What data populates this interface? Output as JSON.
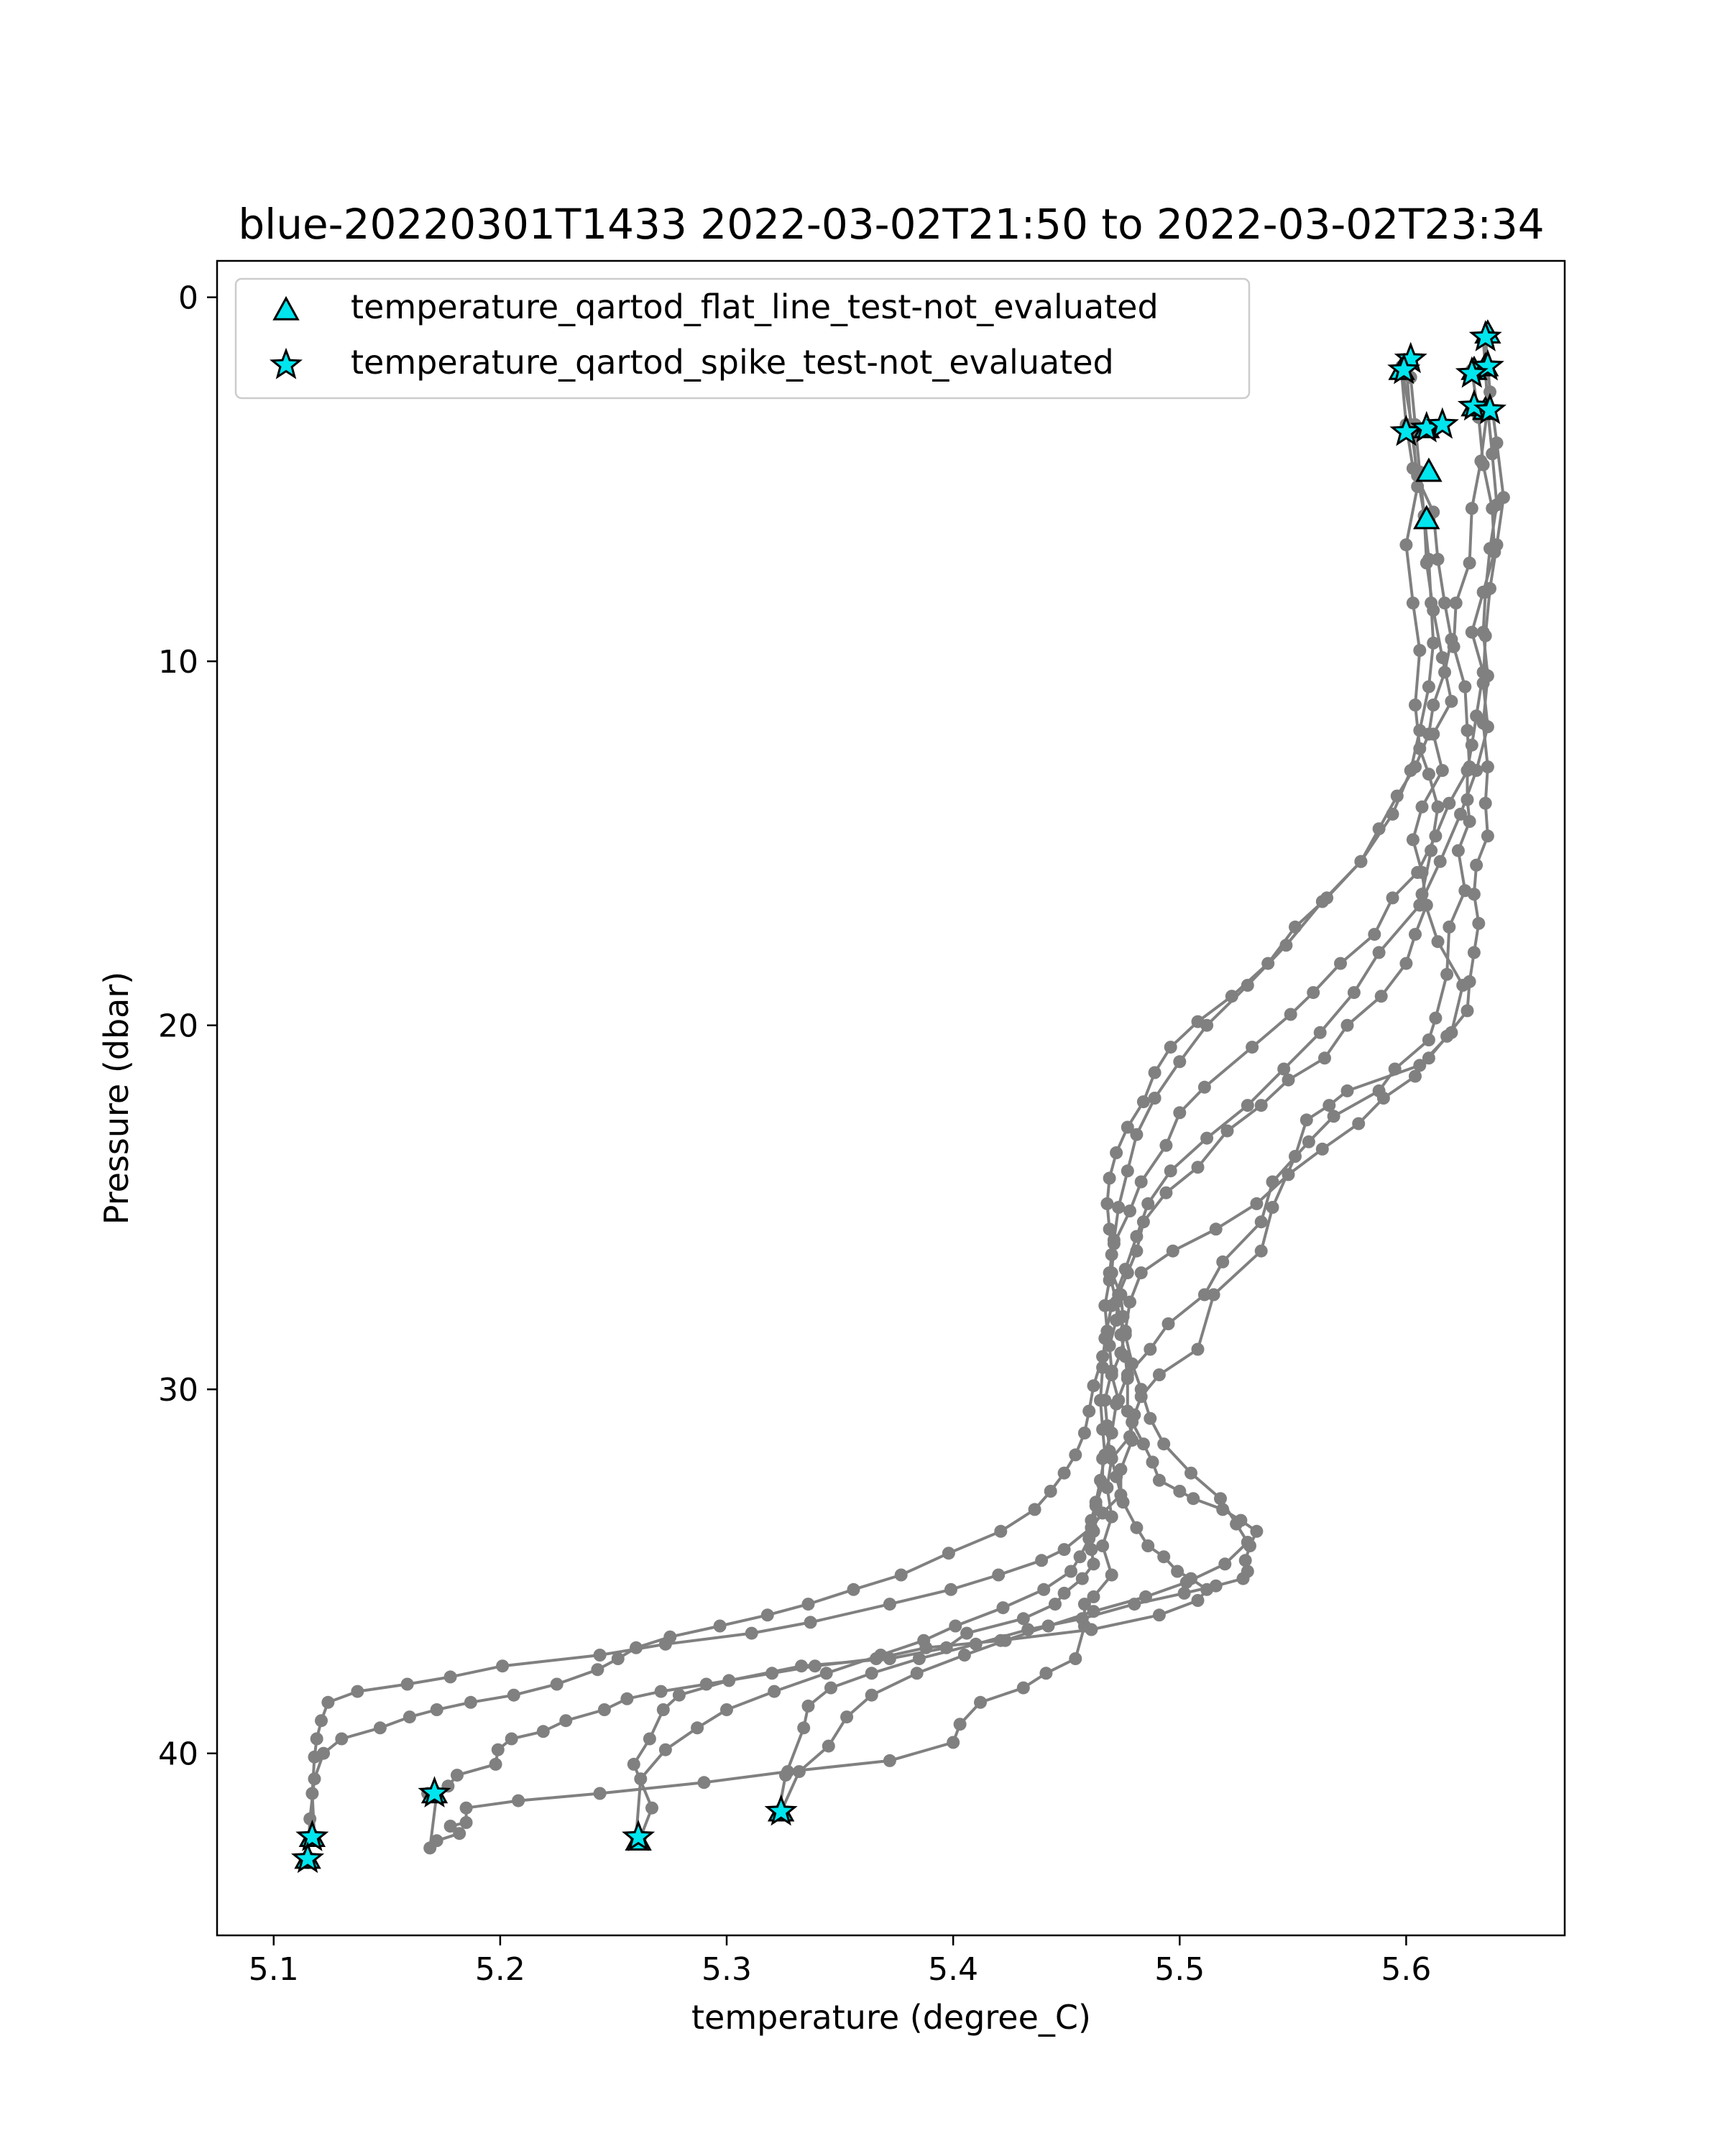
{
  "chart_data": {
    "type": "line",
    "title": "blue-20220301T1433 2022-03-02T21:50 to 2022-03-02T23:34",
    "xlabel": "temperature (degree_C)",
    "ylabel": "Pressure (dbar)",
    "xlim": [
      5.075,
      5.67
    ],
    "ylim": [
      45,
      -1
    ],
    "y_inverted": true,
    "xticks": [
      5.1,
      5.2,
      5.3,
      5.4,
      5.5,
      5.6
    ],
    "xtick_labels": [
      "5.1",
      "5.2",
      "5.3",
      "5.4",
      "5.5",
      "5.6"
    ],
    "yticks": [
      0,
      10,
      20,
      30,
      40
    ],
    "ytick_labels": [
      "0",
      "10",
      "20",
      "30",
      "40"
    ],
    "line_color": "#808080",
    "marker_color": "#00e5ee",
    "legend_position": "upper-left",
    "legend": [
      {
        "label": "temperature_qartod_flat_line_test-not_evaluated",
        "marker": "triangle"
      },
      {
        "label": "temperature_qartod_spike_test-not_evaluated",
        "marker": "star"
      }
    ],
    "series": [
      {
        "x": [
          5.598,
          5.603,
          5.605,
          5.6,
          5.603,
          5.606,
          5.604,
          5.606,
          5.61,
          5.614,
          5.611,
          5.607,
          5.614,
          5.625,
          5.62,
          5.606,
          5.574,
          5.566,
          5.556,
          5.551,
          5.541,
          5.536,
          5.515,
          5.508,
          5.491,
          5.483,
          5.48,
          5.478,
          5.47,
          5.468,
          5.47,
          5.466,
          5.47,
          5.462,
          5.458,
          5.458,
          5.454,
          5.441,
          5.431,
          5.412,
          5.403,
          5.4,
          5.372,
          5.327,
          5.29,
          5.244,
          5.208,
          5.185,
          5.185,
          5.178,
          5.182,
          5.172,
          5.169,
          5.172
        ],
        "y": [
          1.9,
          3.7,
          5.2,
          6.8,
          8.4,
          9.7,
          11.2,
          12.4,
          13.1,
          14.0,
          15.2,
          16.4,
          17.7,
          18.9,
          20.2,
          21.1,
          21.8,
          22.2,
          22.6,
          23.6,
          25.0,
          26.2,
          27.4,
          28.9,
          29.6,
          30.2,
          30.7,
          31.3,
          31.9,
          32.7,
          33.5,
          34.3,
          35.1,
          35.7,
          35.9,
          36.5,
          37.4,
          37.8,
          38.2,
          38.6,
          39.2,
          39.7,
          40.2,
          40.5,
          40.8,
          41.1,
          41.3,
          41.5,
          41.9,
          42.0,
          42.2,
          42.4,
          42.6,
          41.1
        ]
      },
      {
        "x": [
          5.629,
          5.632,
          5.634,
          5.638,
          5.639,
          5.634,
          5.629,
          5.634,
          5.631,
          5.629,
          5.627,
          5.627,
          5.628,
          5.623,
          5.626,
          5.619,
          5.618,
          5.613,
          5.61,
          5.595,
          5.588,
          5.568,
          5.557,
          5.541,
          5.536,
          5.519,
          5.511,
          5.495,
          5.487,
          5.477,
          5.472,
          5.47,
          5.466,
          5.466,
          5.463,
          5.462,
          5.461,
          5.462,
          5.457,
          5.449,
          5.445,
          5.431,
          5.406,
          5.397,
          5.372,
          5.333,
          5.301,
          5.279,
          5.272,
          5.266,
          5.259,
          5.267,
          5.262
        ],
        "y": [
          2.0,
          3.3,
          4.6,
          5.8,
          7.0,
          8.1,
          9.2,
          10.3,
          11.5,
          12.3,
          13.0,
          13.8,
          14.4,
          15.2,
          16.3,
          17.3,
          18.6,
          19.8,
          20.4,
          21.2,
          21.8,
          22.5,
          23.2,
          24.3,
          25.4,
          26.5,
          27.4,
          28.2,
          28.9,
          29.6,
          30.4,
          31.2,
          31.9,
          32.6,
          33.2,
          33.9,
          34.4,
          34.8,
          35.2,
          35.6,
          35.9,
          36.3,
          36.7,
          37.1,
          37.4,
          37.6,
          38.0,
          38.4,
          38.8,
          39.6,
          40.3,
          41.5,
          42.3
        ]
      },
      {
        "x": [
          5.634,
          5.636,
          5.633,
          5.629,
          5.628,
          5.622,
          5.621,
          5.626,
          5.627,
          5.628,
          5.619,
          5.613,
          5.605,
          5.594,
          5.586,
          5.571,
          5.559,
          5.549,
          5.532,
          5.511,
          5.5,
          5.494,
          5.483,
          5.478,
          5.471,
          5.47,
          5.474,
          5.475,
          5.474,
          5.476,
          5.477,
          5.477,
          5.479,
          5.474,
          5.474,
          5.466,
          5.461,
          5.449,
          5.439,
          5.42,
          5.399,
          5.372,
          5.337,
          5.311,
          5.273,
          5.244,
          5.201,
          5.178,
          5.159,
          5.137,
          5.124,
          5.121,
          5.119,
          5.118,
          5.117,
          5.118
        ],
        "y": [
          1.1,
          3.0,
          4.5,
          5.8,
          7.3,
          8.4,
          9.6,
          10.7,
          11.9,
          12.9,
          13.9,
          14.8,
          15.8,
          16.5,
          17.5,
          18.3,
          19.1,
          19.7,
          20.6,
          21.7,
          22.4,
          23.3,
          24.3,
          25.1,
          26.0,
          26.8,
          27.4,
          28.0,
          28.5,
          29.1,
          29.7,
          30.6,
          31.4,
          32.2,
          32.9,
          33.4,
          33.8,
          34.4,
          34.7,
          35.1,
          35.5,
          35.9,
          36.4,
          36.7,
          37.0,
          37.3,
          37.6,
          37.9,
          38.1,
          38.3,
          38.6,
          39.1,
          39.6,
          40.1,
          41.1,
          42.3
        ]
      },
      {
        "x": [
          5.6,
          5.602,
          5.605,
          5.608,
          5.609,
          5.612,
          5.616,
          5.62,
          5.612,
          5.616,
          5.607,
          5.603,
          5.607,
          5.609,
          5.604,
          5.6,
          5.589,
          5.574,
          5.564,
          5.548,
          5.536,
          5.521,
          5.508,
          5.494,
          5.484,
          5.481,
          5.477,
          5.473,
          5.472,
          5.469,
          5.47,
          5.467,
          5.468,
          5.469,
          5.472,
          5.475,
          5.481,
          5.486,
          5.493,
          5.499,
          5.505,
          5.512,
          5.508,
          5.491,
          5.461,
          5.421,
          5.388,
          5.366,
          5.339,
          5.32,
          5.291,
          5.271,
          5.256,
          5.246,
          5.229,
          5.219,
          5.205,
          5.199,
          5.198,
          5.181,
          5.177,
          5.17,
          5.168
        ],
        "y": [
          1.8,
          3.5,
          4.9,
          6.0,
          7.3,
          8.6,
          9.9,
          11.1,
          12.0,
          13.0,
          14.0,
          14.9,
          15.8,
          16.7,
          17.5,
          18.3,
          19.2,
          20.0,
          20.9,
          21.5,
          22.2,
          22.9,
          23.9,
          24.6,
          25.4,
          26.2,
          26.8,
          27.4,
          28.1,
          28.8,
          29.5,
          30.3,
          31.0,
          31.7,
          32.4,
          33.1,
          33.8,
          34.3,
          34.6,
          35.0,
          35.2,
          35.5,
          35.8,
          36.2,
          36.6,
          36.9,
          37.1,
          37.4,
          37.6,
          37.8,
          38.1,
          38.3,
          38.5,
          38.8,
          39.1,
          39.4,
          39.6,
          39.9,
          40.3,
          40.6,
          40.9,
          41.1,
          41.1
        ]
      },
      {
        "x": [
          5.598,
          5.6,
          5.603,
          5.612,
          5.614,
          5.617,
          5.62,
          5.617,
          5.612,
          5.61,
          5.604,
          5.596,
          5.588,
          5.58,
          5.565,
          5.551,
          5.539,
          5.523,
          5.508,
          5.496,
          5.489,
          5.484,
          5.477,
          5.472,
          5.469,
          5.468,
          5.469,
          5.47,
          5.469,
          5.467,
          5.468,
          5.466,
          5.462,
          5.46,
          5.458,
          5.454,
          5.449,
          5.443,
          5.436,
          5.421,
          5.398,
          5.377,
          5.356,
          5.336,
          5.318,
          5.297,
          5.275,
          5.26,
          5.252,
          5.243,
          5.225,
          5.206,
          5.187,
          5.172,
          5.16,
          5.147,
          5.13,
          5.122,
          5.118,
          5.116,
          5.115
        ],
        "y": [
          2.1,
          3.5,
          4.7,
          5.9,
          7.2,
          8.4,
          9.4,
          10.3,
          11.2,
          12.0,
          12.9,
          13.7,
          14.6,
          15.5,
          16.5,
          17.3,
          18.3,
          19.2,
          19.9,
          20.6,
          21.3,
          22.1,
          22.8,
          23.5,
          24.2,
          24.9,
          25.6,
          26.3,
          27.0,
          27.7,
          28.4,
          29.1,
          29.9,
          30.6,
          31.2,
          31.8,
          32.3,
          32.8,
          33.3,
          33.9,
          34.5,
          35.1,
          35.5,
          35.9,
          36.2,
          36.5,
          36.8,
          37.1,
          37.4,
          37.7,
          38.1,
          38.4,
          38.6,
          38.8,
          39.0,
          39.3,
          39.6,
          40.0,
          40.7,
          41.8,
          43.0
        ]
      },
      {
        "x": [
          5.636,
          5.638,
          5.64,
          5.637,
          5.635,
          5.634,
          5.636,
          5.634,
          5.636,
          5.635,
          5.636,
          5.631,
          5.63,
          5.632,
          5.63,
          5.628,
          5.627,
          5.618,
          5.61,
          5.604,
          5.59,
          5.579,
          5.563,
          5.548,
          5.534,
          5.516,
          5.497,
          5.483,
          5.478,
          5.476,
          5.474,
          5.47,
          5.473,
          5.479,
          5.484,
          5.488,
          5.491,
          5.5,
          5.506,
          5.519,
          5.527,
          5.534,
          5.531,
          5.529,
          5.53,
          5.528,
          5.516,
          5.502,
          5.48,
          5.457,
          5.433,
          5.41,
          5.385,
          5.364,
          5.346,
          5.336,
          5.334,
          5.326,
          5.323
        ],
        "y": [
          3.1,
          4.3,
          5.7,
          6.9,
          8.1,
          9.2,
          10.4,
          11.7,
          12.9,
          13.9,
          14.8,
          15.6,
          16.4,
          17.2,
          18.0,
          18.8,
          19.6,
          20.3,
          20.9,
          21.4,
          22.0,
          22.7,
          23.4,
          24.1,
          24.9,
          25.6,
          26.2,
          26.8,
          27.6,
          28.4,
          29.0,
          29.6,
          30.3,
          30.9,
          31.5,
          32.0,
          32.5,
          32.8,
          33.0,
          33.3,
          33.6,
          33.9,
          34.3,
          34.7,
          35.0,
          35.2,
          35.4,
          35.6,
          35.9,
          36.3,
          36.6,
          37.0,
          37.4,
          37.8,
          38.2,
          38.7,
          39.3,
          40.6,
          41.6
        ]
      },
      {
        "x": [
          5.635,
          5.637,
          5.64,
          5.643,
          5.64,
          5.637,
          5.635,
          5.634,
          5.636,
          5.631,
          5.624,
          5.615,
          5.606,
          5.588,
          5.577,
          5.562,
          5.546,
          5.53,
          5.512,
          5.496,
          5.486,
          5.481,
          5.476,
          5.47,
          5.467,
          5.466,
          5.465,
          5.466,
          5.467,
          5.465,
          5.463,
          5.461,
          5.46,
          5.456,
          5.452,
          5.44,
          5.422,
          5.401,
          5.387,
          5.368,
          5.344,
          5.321,
          5.3,
          5.287,
          5.273,
          5.262,
          5.26
        ],
        "y": [
          1.1,
          2.6,
          4.0,
          5.5,
          6.8,
          8.0,
          9.3,
          10.6,
          11.8,
          13.0,
          14.2,
          15.5,
          16.7,
          18.0,
          19.1,
          20.2,
          21.2,
          22.2,
          23.1,
          24.0,
          24.9,
          25.8,
          26.7,
          27.7,
          28.6,
          29.4,
          30.3,
          31.1,
          31.8,
          32.5,
          33.1,
          33.6,
          34.1,
          34.6,
          35.0,
          35.5,
          36.0,
          36.5,
          36.9,
          37.3,
          37.8,
          38.3,
          38.8,
          39.3,
          39.9,
          40.7,
          42.3
        ]
      },
      {
        "x": [
          5.602,
          5.604,
          5.606,
          5.608,
          5.61,
          5.611,
          5.612,
          5.61,
          5.606,
          5.602,
          5.594,
          5.58,
          5.563,
          5.547,
          5.53,
          5.512,
          5.5,
          5.489,
          5.481,
          5.477,
          5.473,
          5.471,
          5.469,
          5.472,
          5.476,
          5.479,
          5.483,
          5.487,
          5.493,
          5.505,
          5.518,
          5.525,
          5.53,
          5.52,
          5.503,
          5.485,
          5.462,
          5.442,
          5.423,
          5.405,
          5.384,
          5.364,
          5.353,
          5.345,
          5.332,
          5.324
        ],
        "y": [
          2.2,
          3.5,
          4.8,
          6.0,
          7.2,
          8.4,
          9.5,
          10.7,
          11.9,
          13.0,
          14.2,
          15.5,
          16.6,
          17.8,
          18.9,
          20.0,
          21.0,
          22.0,
          23.0,
          24.0,
          25.0,
          25.9,
          26.8,
          27.6,
          28.5,
          29.3,
          30.0,
          30.8,
          31.5,
          32.3,
          33.0,
          33.7,
          34.2,
          34.8,
          35.3,
          35.7,
          36.1,
          36.5,
          36.9,
          37.3,
          37.8,
          38.4,
          39.0,
          39.8,
          40.5,
          41.6
        ]
      }
    ],
    "flat_line_markers": [
      {
        "x": 5.598,
        "y": 2.0
      },
      {
        "x": 5.609,
        "y": 3.6
      },
      {
        "x": 5.61,
        "y": 4.8
      },
      {
        "x": 5.609,
        "y": 6.1
      },
      {
        "x": 5.63,
        "y": 2.0
      },
      {
        "x": 5.636,
        "y": 1.0
      },
      {
        "x": 5.635,
        "y": 1.9
      },
      {
        "x": 5.63,
        "y": 3.0
      },
      {
        "x": 5.635,
        "y": 3.1
      },
      {
        "x": 5.117,
        "y": 42.3
      },
      {
        "x": 5.115,
        "y": 42.9
      },
      {
        "x": 5.171,
        "y": 41.1
      },
      {
        "x": 5.261,
        "y": 42.4
      },
      {
        "x": 5.324,
        "y": 41.6
      }
    ],
    "spike_markers": [
      {
        "x": 5.602,
        "y": 1.7
      },
      {
        "x": 5.599,
        "y": 2.0
      },
      {
        "x": 5.635,
        "y": 1.1
      },
      {
        "x": 5.636,
        "y": 1.9
      },
      {
        "x": 5.629,
        "y": 2.1
      },
      {
        "x": 5.63,
        "y": 3.0
      },
      {
        "x": 5.637,
        "y": 3.1
      },
      {
        "x": 5.6,
        "y": 3.7
      },
      {
        "x": 5.609,
        "y": 3.6
      },
      {
        "x": 5.616,
        "y": 3.5
      },
      {
        "x": 5.117,
        "y": 42.3
      },
      {
        "x": 5.115,
        "y": 42.9
      },
      {
        "x": 5.171,
        "y": 41.1
      },
      {
        "x": 5.261,
        "y": 42.3
      },
      {
        "x": 5.324,
        "y": 41.6
      }
    ]
  }
}
